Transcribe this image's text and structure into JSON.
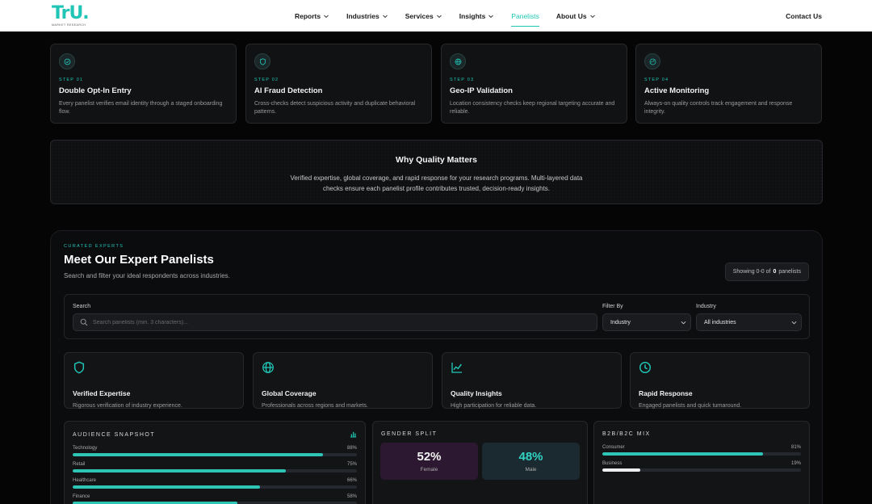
{
  "nav": {
    "logo_text": "TrU.",
    "logo_sub": "MARKET RESEARCH",
    "items": [
      {
        "label": "Reports",
        "chevron": true,
        "active": false
      },
      {
        "label": "Industries",
        "chevron": true,
        "active": false
      },
      {
        "label": "Services",
        "chevron": true,
        "active": false
      },
      {
        "label": "Insights",
        "chevron": true,
        "active": false
      },
      {
        "label": "Panelists",
        "chevron": false,
        "active": true
      },
      {
        "label": "About Us",
        "chevron": true,
        "active": false
      }
    ],
    "contact": "Contact Us"
  },
  "colors": {
    "accent": "#20c5b5",
    "nav_bg": "#ffffff",
    "page_bg": "#050505"
  },
  "steps": [
    {
      "label": "STEP 01",
      "title": "Double Opt-In Entry",
      "desc": "Every panelist verifies email identity through a staged onboarding flow.",
      "icon": "check-circle-icon"
    },
    {
      "label": "STEP 02",
      "title": "AI Fraud Detection",
      "desc": "Cross-checks detect suspicious activity and duplicate behavioral patterns.",
      "icon": "shield-icon"
    },
    {
      "label": "STEP 03",
      "title": "Geo-IP Validation",
      "desc": "Location consistency checks keep regional targeting accurate and reliable.",
      "icon": "globe-icon"
    },
    {
      "label": "STEP 04",
      "title": "Active Monitoring",
      "desc": "Always-on quality controls track engagement and response integrity.",
      "icon": "gauge-icon"
    }
  ],
  "why": {
    "title": "Why Quality Matters",
    "desc": "Verified expertise, global coverage, and rapid response for your research programs. Multi-layered data checks ensure each panelist profile contributes trusted, decision-ready insights."
  },
  "experts": {
    "label": "CURATED EXPERTS",
    "title": "Meet Our Expert Panelists",
    "subtitle": "Search and filter your ideal respondents across industries.",
    "showing_prefix": "Showing 0-0 of",
    "showing_count": "0",
    "showing_suffix": "panelists"
  },
  "filters": {
    "search_label": "Search",
    "search_placeholder": "Search panelists (min. 3 characters)...",
    "search_value": "",
    "filter_label": "Filter By",
    "filter_value": "Industry",
    "industry_label": "Industry",
    "industry_value": "All industries"
  },
  "features": [
    {
      "title": "Verified Expertise",
      "desc": "Rigorous verification of industry experience.",
      "icon": "shield-icon"
    },
    {
      "title": "Global Coverage",
      "desc": "Professionals across regions and markets.",
      "icon": "globe-icon"
    },
    {
      "title": "Quality Insights",
      "desc": "High participation for reliable data.",
      "icon": "line-chart-icon"
    },
    {
      "title": "Rapid Response",
      "desc": "Engaged panelists and quick turnaround.",
      "icon": "clock-icon"
    }
  ],
  "audience": {
    "title": "AUDIENCE SNAPSHOT",
    "icon": "bar-chart-icon",
    "rows": [
      {
        "label": "Technology",
        "value": "88%",
        "fraction": 0.88
      },
      {
        "label": "Retail",
        "value": "75%",
        "fraction": 0.75
      },
      {
        "label": "Healthcare",
        "value": "66%",
        "fraction": 0.66
      },
      {
        "label": "Finance",
        "value": "58%",
        "fraction": 0.58
      }
    ]
  },
  "gender": {
    "title": "GENDER SPLIT",
    "female_pct": "52%",
    "female_label": "Female",
    "male_pct": "48%",
    "male_label": "Male"
  },
  "mix": {
    "title": "B2B/B2C MIX",
    "rows": [
      {
        "label": "Consumer",
        "value": "81%",
        "fraction": 0.81,
        "color": "#2ec4b6"
      },
      {
        "label": "Business",
        "value": "19%",
        "fraction": 0.19,
        "color": "#eeeeee"
      }
    ]
  }
}
